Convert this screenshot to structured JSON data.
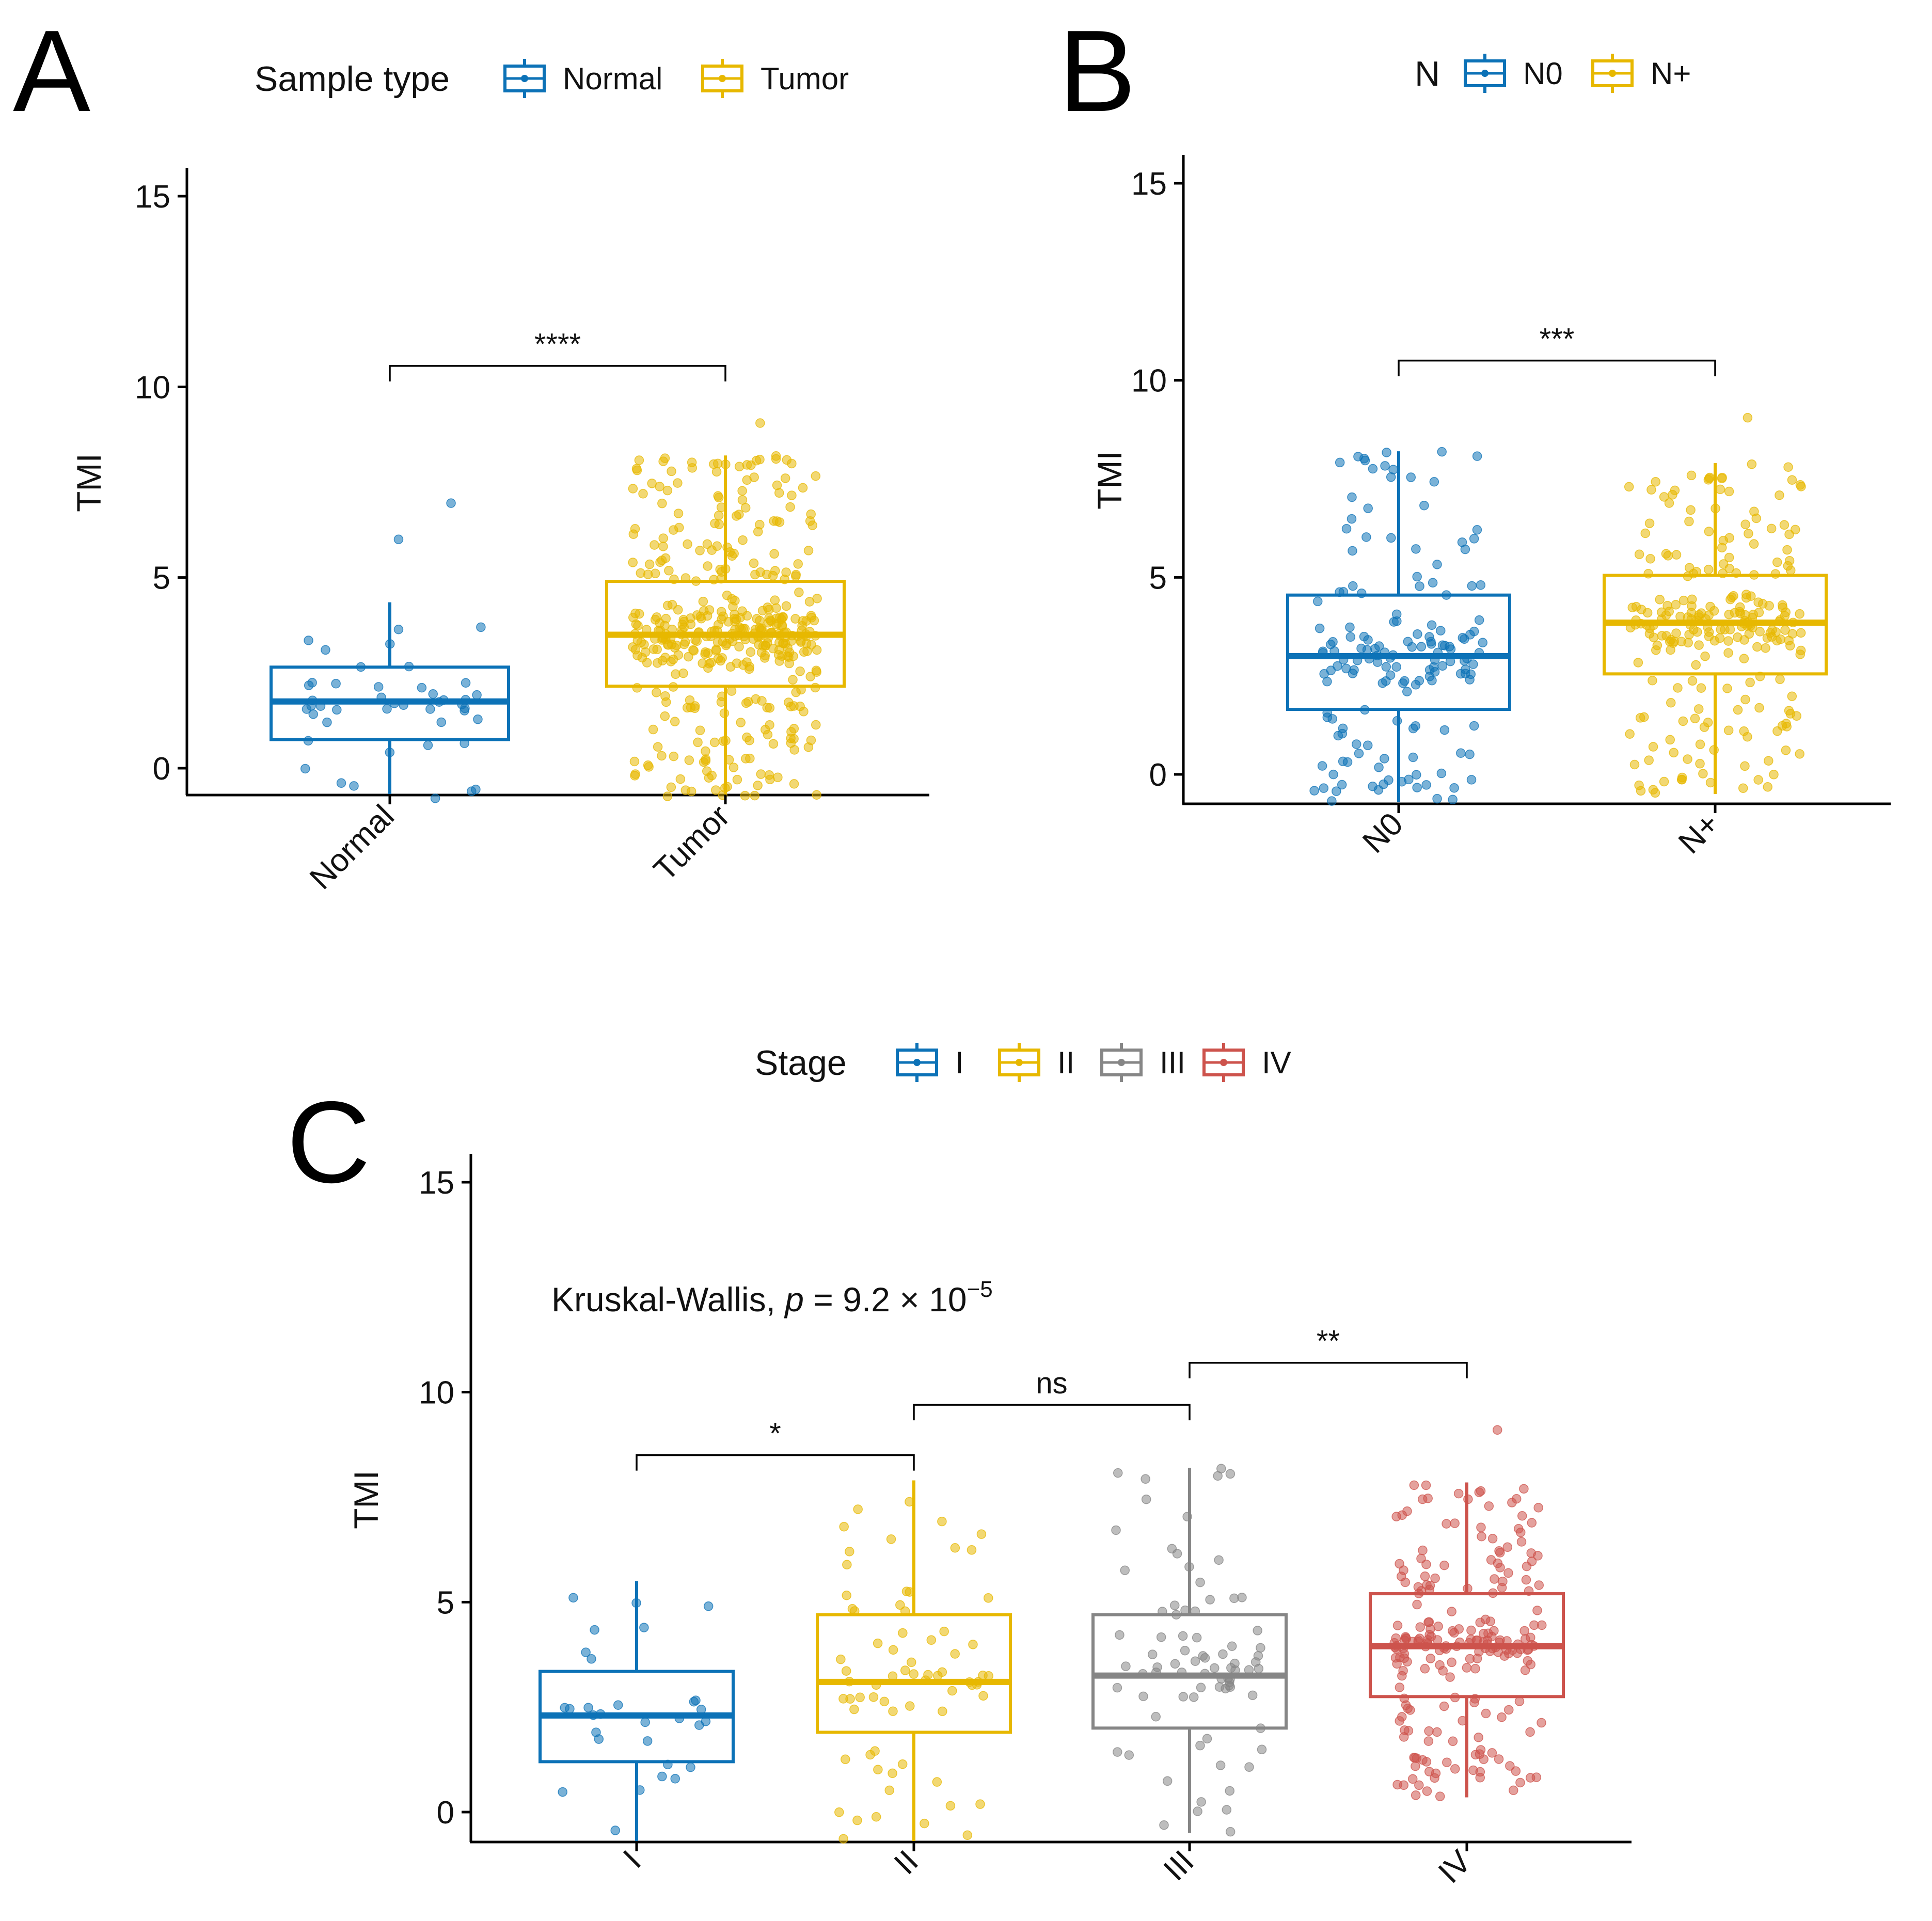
{
  "chart_data": [
    {
      "panel": "A",
      "type": "box",
      "legend": {
        "title": "Sample type",
        "entries": [
          "Normal",
          "Tumor"
        ]
      },
      "ylabel": "TMI",
      "ylim": [
        -0.8,
        15.7
      ],
      "yticks": [
        0,
        5,
        10,
        15
      ],
      "categories": [
        "Normal",
        "Tumor"
      ],
      "colors": [
        "#0c72b7",
        "#e7b800"
      ],
      "boxes": [
        {
          "name": "Normal",
          "q1": 0.75,
          "median": 1.75,
          "q3": 2.65,
          "whisker_low": -0.8,
          "whisker_high": 4.35,
          "n_points": 45
        },
        {
          "name": "Tumor",
          "q1": 2.15,
          "median": 3.5,
          "q3": 4.9,
          "whisker_low": -0.8,
          "whisker_high": 8.2,
          "n_points": 420
        }
      ],
      "outliers": [
        {
          "category": "Normal",
          "y": 6.95
        },
        {
          "category": "Normal",
          "y": 6.0
        },
        {
          "category": "Tumor",
          "y": 9.05
        }
      ],
      "comparisons": [
        {
          "from": "Normal",
          "to": "Tumor",
          "y": 10.55,
          "label": "****"
        }
      ]
    },
    {
      "panel": "B",
      "type": "box",
      "legend": {
        "title": "N",
        "entries": [
          "N0",
          "N+"
        ]
      },
      "ylabel": "TMI",
      "ylim": [
        -0.7,
        15.7
      ],
      "yticks": [
        0,
        5,
        10,
        15
      ],
      "categories": [
        "N0",
        "N+"
      ],
      "colors": [
        "#0c72b7",
        "#e7b800"
      ],
      "boxes": [
        {
          "name": "N0",
          "q1": 1.65,
          "median": 3.0,
          "q3": 4.55,
          "whisker_low": -0.7,
          "whisker_high": 8.2,
          "n_points": 160
        },
        {
          "name": "N+",
          "q1": 2.55,
          "median": 3.85,
          "q3": 5.05,
          "whisker_low": -0.5,
          "whisker_high": 7.9,
          "n_points": 240
        }
      ],
      "outliers": [
        {
          "category": "N+",
          "y": 9.05
        }
      ],
      "comparisons": [
        {
          "from": "N0",
          "to": "N+",
          "y": 10.5,
          "label": "***"
        }
      ]
    },
    {
      "panel": "C",
      "type": "box",
      "legend": {
        "title": "Stage",
        "entries": [
          "I",
          "II",
          "III",
          "IV"
        ]
      },
      "ylabel": "TMI",
      "ylim": [
        -0.7,
        15.7
      ],
      "yticks": [
        0,
        5,
        10,
        15
      ],
      "categories": [
        "I",
        "II",
        "III",
        "IV"
      ],
      "colors": [
        "#0c72b7",
        "#e7b800",
        "#868686",
        "#cd534c"
      ],
      "boxes": [
        {
          "name": "I",
          "q1": 1.2,
          "median": 2.3,
          "q3": 3.35,
          "whisker_low": -0.7,
          "whisker_high": 5.5,
          "n_points": 30
        },
        {
          "name": "II",
          "q1": 1.9,
          "median": 3.1,
          "q3": 4.7,
          "whisker_low": -0.7,
          "whisker_high": 7.9,
          "n_points": 70
        },
        {
          "name": "III",
          "q1": 2.0,
          "median": 3.25,
          "q3": 4.7,
          "whisker_low": -0.5,
          "whisker_high": 8.2,
          "n_points": 80
        },
        {
          "name": "IV",
          "q1": 2.75,
          "median": 3.95,
          "q3": 5.2,
          "whisker_low": 0.35,
          "whisker_high": 7.85,
          "n_points": 220
        }
      ],
      "outliers": [
        {
          "category": "IV",
          "y": 9.1
        }
      ],
      "comparisons": [
        {
          "from": "I",
          "to": "II",
          "y": 8.5,
          "label": "*"
        },
        {
          "from": "II",
          "to": "III",
          "y": 9.7,
          "label": "ns"
        },
        {
          "from": "III",
          "to": "IV",
          "y": 10.7,
          "label": "**"
        }
      ],
      "annotation": {
        "prefix": "Kruskal-Wallis, ",
        "p_symbol": "p",
        "body": " = 9.2 × 10",
        "exponent": "−5"
      }
    }
  ]
}
